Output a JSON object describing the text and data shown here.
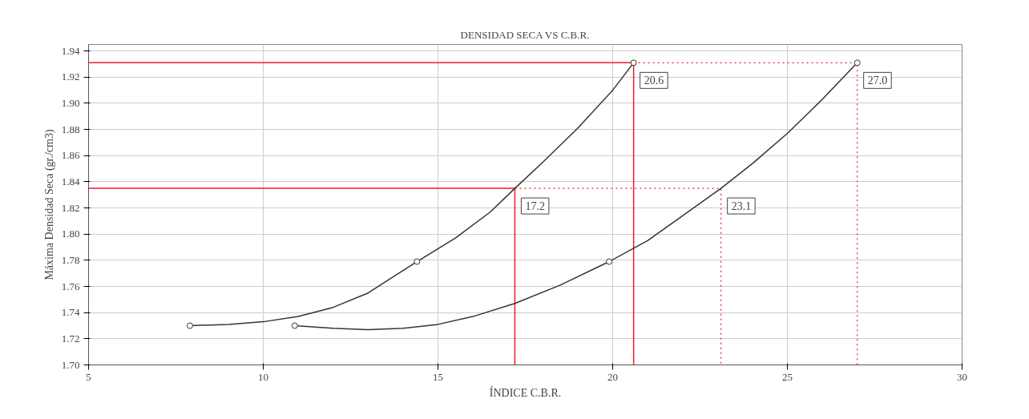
{
  "chart_data": {
    "type": "line",
    "title": "DENSIDAD SECA VS C.B.R.",
    "xlabel": "ÍNDICE C.B.R.",
    "ylabel": "Máxima Densidad Seca (gr./cm3)",
    "xlim": [
      5,
      30
    ],
    "xticks": [
      5,
      10,
      15,
      20,
      25,
      30
    ],
    "ylim": [
      1.7,
      1.945
    ],
    "yticks": [
      {
        "value": 1.7,
        "label": "1.70"
      },
      {
        "value": 1.72,
        "label": "1.72"
      },
      {
        "value": 1.74,
        "label": "1.74"
      },
      {
        "value": 1.76,
        "label": "1.76"
      },
      {
        "value": 1.78,
        "label": "1.78"
      },
      {
        "value": 1.8,
        "label": "1.80"
      },
      {
        "value": 1.82,
        "label": "1.82"
      },
      {
        "value": 1.84,
        "label": "1.84"
      },
      {
        "value": 1.86,
        "label": "1.86"
      },
      {
        "value": 1.88,
        "label": "1.88"
      },
      {
        "value": 1.9,
        "label": "1.90"
      },
      {
        "value": 1.92,
        "label": "1.92"
      },
      {
        "value": 1.94,
        "label": "1.94"
      }
    ],
    "grid": true,
    "series": [
      {
        "color": "#ee1c25",
        "line_style": "solid",
        "marker": "none",
        "x": [
          5,
          20.6,
          20.6
        ],
        "values": [
          1.931,
          1.931,
          1.7
        ]
      },
      {
        "color": "#ee1c25",
        "line_style": "dotted",
        "marker": "none",
        "x": [
          20.6,
          27.0,
          27.0
        ],
        "values": [
          1.931,
          1.931,
          1.7
        ]
      },
      {
        "color": "#ee1c25",
        "line_style": "solid",
        "marker": "none",
        "x": [
          5,
          17.2,
          17.2
        ],
        "values": [
          1.835,
          1.835,
          1.7
        ]
      },
      {
        "color": "#ee1c25",
        "line_style": "dotted",
        "marker": "none",
        "x": [
          17.2,
          23.1,
          23.1
        ],
        "values": [
          1.835,
          1.835,
          1.7
        ]
      },
      {
        "color": "#333333",
        "line_style": "solid",
        "marker": "none",
        "x": [
          7.9,
          9,
          10,
          11,
          12,
          13,
          14.4,
          15.5,
          16.5,
          17.2,
          18,
          19,
          20,
          20.6
        ],
        "values": [
          1.73,
          1.731,
          1.733,
          1.737,
          1.744,
          1.755,
          1.779,
          1.797,
          1.817,
          1.835,
          1.855,
          1.881,
          1.91,
          1.931
        ]
      },
      {
        "color": "#333333",
        "line_style": "solid",
        "marker": "none",
        "x": [
          10.9,
          12,
          13,
          14,
          15,
          16,
          17.2,
          18.5,
          19.9,
          21,
          22,
          23.1,
          24,
          25,
          26,
          27.0
        ],
        "values": [
          1.73,
          1.728,
          1.727,
          1.728,
          1.731,
          1.737,
          1.747,
          1.761,
          1.779,
          1.795,
          1.814,
          1.835,
          1.854,
          1.877,
          1.903,
          1.931
        ]
      },
      {
        "type": "scatter",
        "color": "#333333",
        "marker": "circle",
        "x": [
          7.9,
          14.4,
          20.6
        ],
        "values": [
          1.73,
          1.779,
          1.931
        ]
      },
      {
        "type": "scatter",
        "color": "#333333",
        "marker": "circle",
        "x": [
          10.9,
          19.9,
          27.0
        ],
        "values": [
          1.73,
          1.779,
          1.931
        ]
      }
    ],
    "annotations": [
      {
        "text": "20.6",
        "x": 20.6,
        "y": 1.931
      },
      {
        "text": "27.0",
        "x": 27.0,
        "y": 1.931
      },
      {
        "text": "17.2",
        "x": 17.2,
        "y": 1.835
      },
      {
        "text": "23.1",
        "x": 23.1,
        "y": 1.835
      }
    ]
  }
}
